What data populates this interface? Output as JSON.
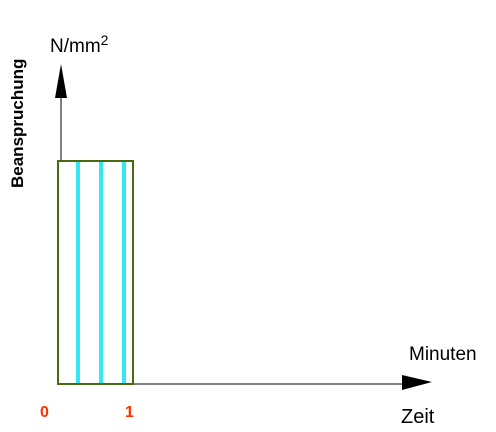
{
  "diagram": {
    "y_axis_label": "Beanspruchung",
    "y_unit_base": "N/mm",
    "y_unit_exponent": "2",
    "x_unit": "Minuten",
    "x_axis_label": "Zeit",
    "tick_start": "0",
    "tick_end": "1"
  },
  "colors": {
    "axis": "#000000",
    "box_outline": "#4a6a10",
    "stripes": "#33e8f0",
    "tick_labels": "#ff3300"
  }
}
